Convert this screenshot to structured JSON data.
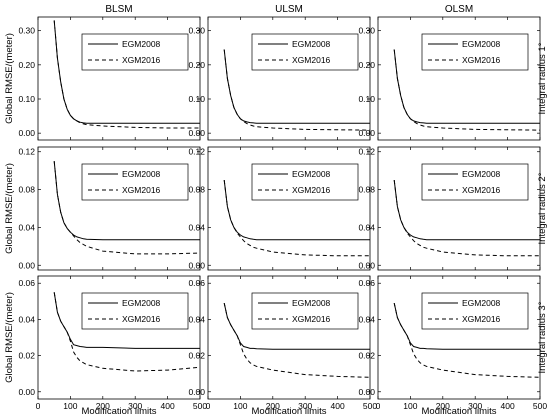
{
  "chart_data": {
    "type": "line",
    "layout": "3x3 grid",
    "column_titles": [
      "BLSM",
      "ULSM",
      "OLSM"
    ],
    "row_labels": [
      "Integral radius 1°",
      "Integral radius 2°",
      "Integral radius 3°"
    ],
    "xlabel": "Modification limits",
    "ylabel": "Global RMSE/(meter)",
    "xlim": [
      0,
      500
    ],
    "x_ticks": [
      0,
      100,
      200,
      300,
      400,
      500
    ],
    "x_tick_labels": [
      "0",
      "100",
      "200",
      "300",
      "400",
      "500"
    ],
    "legend": [
      {
        "name": "EGM2008",
        "style": "solid",
        "color": "#000000"
      },
      {
        "name": "XGM2016",
        "style": "dashed",
        "color": "#000000"
      }
    ],
    "legend_position": "top-right",
    "grid": false,
    "rows": [
      {
        "ylim": [
          -0.02,
          0.34
        ],
        "y_ticks": [
          0,
          0.1,
          0.2,
          0.3
        ],
        "y_tick_labels": [
          "0.00",
          "0.10",
          "0.20",
          "0.30"
        ],
        "panels": [
          {
            "series": [
              {
                "name": "EGM2008",
                "x": [
                  50,
                  60,
                  70,
                  80,
                  90,
                  100,
                  110,
                  120,
                  130,
                  140,
                  150,
                  200,
                  300,
                  400,
                  500
                ],
                "y": [
                  0.33,
                  0.22,
                  0.15,
                  0.1,
                  0.07,
                  0.052,
                  0.042,
                  0.036,
                  0.032,
                  0.03,
                  0.029,
                  0.029,
                  0.029,
                  0.029,
                  0.029
                ]
              },
              {
                "name": "XGM2016",
                "x": [
                  50,
                  60,
                  70,
                  80,
                  90,
                  100,
                  110,
                  120,
                  130,
                  140,
                  150,
                  200,
                  300,
                  400,
                  500
                ],
                "y": [
                  0.33,
                  0.22,
                  0.15,
                  0.1,
                  0.07,
                  0.052,
                  0.042,
                  0.036,
                  0.03,
                  0.027,
                  0.025,
                  0.021,
                  0.017,
                  0.015,
                  0.015
                ]
              }
            ]
          },
          {
            "series": [
              {
                "name": "EGM2008",
                "x": [
                  50,
                  60,
                  70,
                  80,
                  90,
                  100,
                  110,
                  120,
                  130,
                  140,
                  150,
                  200,
                  300,
                  400,
                  500
                ],
                "y": [
                  0.245,
                  0.16,
                  0.11,
                  0.075,
                  0.055,
                  0.042,
                  0.036,
                  0.033,
                  0.031,
                  0.03,
                  0.029,
                  0.029,
                  0.029,
                  0.029,
                  0.029
                ]
              },
              {
                "name": "XGM2016",
                "x": [
                  50,
                  60,
                  70,
                  80,
                  90,
                  100,
                  110,
                  120,
                  130,
                  140,
                  150,
                  200,
                  300,
                  400,
                  500
                ],
                "y": [
                  0.245,
                  0.16,
                  0.11,
                  0.075,
                  0.055,
                  0.042,
                  0.034,
                  0.028,
                  0.024,
                  0.021,
                  0.019,
                  0.015,
                  0.011,
                  0.01,
                  0.009
                ]
              }
            ]
          },
          {
            "series": [
              {
                "name": "EGM2008",
                "x": [
                  50,
                  60,
                  70,
                  80,
                  90,
                  100,
                  110,
                  120,
                  130,
                  140,
                  150,
                  200,
                  300,
                  400,
                  500
                ],
                "y": [
                  0.245,
                  0.16,
                  0.11,
                  0.075,
                  0.055,
                  0.042,
                  0.036,
                  0.033,
                  0.031,
                  0.03,
                  0.029,
                  0.029,
                  0.029,
                  0.029,
                  0.029
                ]
              },
              {
                "name": "XGM2016",
                "x": [
                  50,
                  60,
                  70,
                  80,
                  90,
                  100,
                  110,
                  120,
                  130,
                  140,
                  150,
                  200,
                  300,
                  400,
                  500
                ],
                "y": [
                  0.245,
                  0.16,
                  0.11,
                  0.075,
                  0.055,
                  0.042,
                  0.034,
                  0.028,
                  0.024,
                  0.021,
                  0.019,
                  0.015,
                  0.011,
                  0.01,
                  0.009
                ]
              }
            ]
          }
        ]
      },
      {
        "ylim": [
          -0.005,
          0.125
        ],
        "y_ticks": [
          0,
          0.04,
          0.08,
          0.12
        ],
        "y_tick_labels": [
          "0.00",
          "0.04",
          "0.08",
          "0.12"
        ],
        "panels": [
          {
            "series": [
              {
                "name": "EGM2008",
                "x": [
                  50,
                  60,
                  70,
                  80,
                  90,
                  100,
                  110,
                  120,
                  130,
                  140,
                  150,
                  200,
                  300,
                  400,
                  500
                ],
                "y": [
                  0.11,
                  0.075,
                  0.056,
                  0.045,
                  0.039,
                  0.035,
                  0.032,
                  0.03,
                  0.029,
                  0.028,
                  0.0275,
                  0.027,
                  0.027,
                  0.027,
                  0.027
                ]
              },
              {
                "name": "XGM2016",
                "x": [
                  50,
                  60,
                  70,
                  80,
                  90,
                  100,
                  110,
                  120,
                  130,
                  140,
                  150,
                  200,
                  300,
                  400,
                  500
                ],
                "y": [
                  0.11,
                  0.075,
                  0.056,
                  0.045,
                  0.039,
                  0.035,
                  0.031,
                  0.027,
                  0.024,
                  0.022,
                  0.02,
                  0.015,
                  0.012,
                  0.012,
                  0.013
                ]
              }
            ]
          },
          {
            "series": [
              {
                "name": "EGM2008",
                "x": [
                  50,
                  60,
                  70,
                  80,
                  90,
                  100,
                  110,
                  120,
                  130,
                  140,
                  150,
                  200,
                  300,
                  400,
                  500
                ],
                "y": [
                  0.09,
                  0.062,
                  0.048,
                  0.04,
                  0.035,
                  0.032,
                  0.03,
                  0.029,
                  0.028,
                  0.0275,
                  0.027,
                  0.027,
                  0.027,
                  0.027,
                  0.027
                ]
              },
              {
                "name": "XGM2016",
                "x": [
                  50,
                  60,
                  70,
                  80,
                  90,
                  100,
                  110,
                  120,
                  130,
                  140,
                  150,
                  200,
                  300,
                  400,
                  500
                ],
                "y": [
                  0.09,
                  0.062,
                  0.048,
                  0.04,
                  0.034,
                  0.03,
                  0.026,
                  0.023,
                  0.021,
                  0.019,
                  0.018,
                  0.014,
                  0.011,
                  0.01,
                  0.01
                ]
              }
            ]
          },
          {
            "series": [
              {
                "name": "EGM2008",
                "x": [
                  50,
                  60,
                  70,
                  80,
                  90,
                  100,
                  110,
                  120,
                  130,
                  140,
                  150,
                  200,
                  300,
                  400,
                  500
                ],
                "y": [
                  0.09,
                  0.062,
                  0.048,
                  0.04,
                  0.035,
                  0.032,
                  0.03,
                  0.029,
                  0.028,
                  0.0275,
                  0.027,
                  0.027,
                  0.027,
                  0.027,
                  0.027
                ]
              },
              {
                "name": "XGM2016",
                "x": [
                  50,
                  60,
                  70,
                  80,
                  90,
                  100,
                  110,
                  120,
                  130,
                  140,
                  150,
                  200,
                  300,
                  400,
                  500
                ],
                "y": [
                  0.09,
                  0.062,
                  0.048,
                  0.04,
                  0.034,
                  0.03,
                  0.026,
                  0.023,
                  0.021,
                  0.019,
                  0.018,
                  0.014,
                  0.011,
                  0.01,
                  0.01
                ]
              }
            ]
          }
        ]
      },
      {
        "ylim": [
          -0.004,
          0.064
        ],
        "y_ticks": [
          0,
          0.02,
          0.04,
          0.06
        ],
        "y_tick_labels": [
          "0.00",
          "0.02",
          "0.04",
          "0.06"
        ],
        "panels": [
          {
            "series": [
              {
                "name": "EGM2008",
                "x": [
                  50,
                  60,
                  70,
                  80,
                  90,
                  100,
                  110,
                  120,
                  130,
                  140,
                  150,
                  200,
                  300,
                  400,
                  500
                ],
                "y": [
                  0.055,
                  0.044,
                  0.039,
                  0.036,
                  0.033,
                  0.029,
                  0.026,
                  0.0255,
                  0.025,
                  0.0248,
                  0.0245,
                  0.0245,
                  0.024,
                  0.024,
                  0.024
                ]
              },
              {
                "name": "XGM2016",
                "x": [
                  50,
                  60,
                  70,
                  80,
                  90,
                  100,
                  110,
                  120,
                  130,
                  140,
                  150,
                  200,
                  300,
                  400,
                  500
                ],
                "y": [
                  0.055,
                  0.044,
                  0.039,
                  0.036,
                  0.033,
                  0.028,
                  0.022,
                  0.019,
                  0.017,
                  0.016,
                  0.015,
                  0.013,
                  0.0115,
                  0.012,
                  0.0135
                ]
              }
            ]
          },
          {
            "series": [
              {
                "name": "EGM2008",
                "x": [
                  50,
                  60,
                  70,
                  80,
                  90,
                  100,
                  110,
                  120,
                  130,
                  140,
                  150,
                  200,
                  300,
                  400,
                  500
                ],
                "y": [
                  0.049,
                  0.041,
                  0.037,
                  0.034,
                  0.031,
                  0.027,
                  0.025,
                  0.0245,
                  0.024,
                  0.024,
                  0.0238,
                  0.0235,
                  0.0235,
                  0.0235,
                  0.0235
                ]
              },
              {
                "name": "XGM2016",
                "x": [
                  50,
                  60,
                  70,
                  80,
                  90,
                  100,
                  110,
                  120,
                  130,
                  140,
                  150,
                  200,
                  300,
                  400,
                  500
                ],
                "y": [
                  0.049,
                  0.041,
                  0.037,
                  0.034,
                  0.031,
                  0.026,
                  0.021,
                  0.018,
                  0.016,
                  0.0148,
                  0.014,
                  0.012,
                  0.0095,
                  0.0085,
                  0.008
                ]
              }
            ]
          },
          {
            "series": [
              {
                "name": "EGM2008",
                "x": [
                  50,
                  60,
                  70,
                  80,
                  90,
                  100,
                  110,
                  120,
                  130,
                  140,
                  150,
                  200,
                  300,
                  400,
                  500
                ],
                "y": [
                  0.049,
                  0.041,
                  0.037,
                  0.034,
                  0.031,
                  0.027,
                  0.025,
                  0.0245,
                  0.024,
                  0.024,
                  0.0238,
                  0.0235,
                  0.0235,
                  0.0235,
                  0.0235
                ]
              },
              {
                "name": "XGM2016",
                "x": [
                  50,
                  60,
                  70,
                  80,
                  90,
                  100,
                  110,
                  120,
                  130,
                  140,
                  150,
                  200,
                  300,
                  400,
                  500
                ],
                "y": [
                  0.049,
                  0.041,
                  0.037,
                  0.034,
                  0.031,
                  0.026,
                  0.021,
                  0.018,
                  0.016,
                  0.0148,
                  0.014,
                  0.012,
                  0.0095,
                  0.0085,
                  0.008
                ]
              }
            ]
          }
        ]
      }
    ]
  }
}
